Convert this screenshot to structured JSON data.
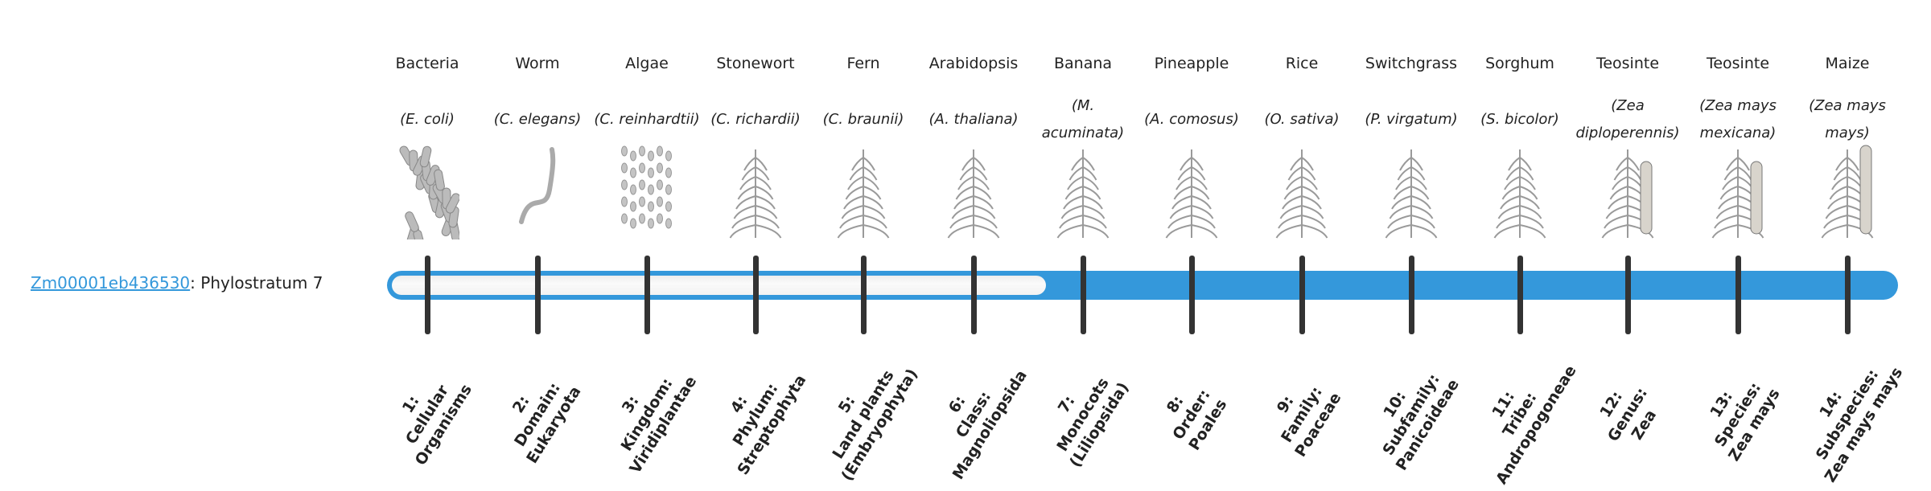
{
  "gene": {
    "id": "Zm00001eb436530",
    "suffix": ": Phylostratum 7",
    "phylostratum": 7
  },
  "colors": {
    "bar": "#3498db",
    "tick": "#333333",
    "link": "#3498db"
  },
  "strata": [
    {
      "name": "Bacteria",
      "sci": "(E. coli)",
      "icon": "bacteria-illustration",
      "label": [
        "1:",
        "Cellular",
        "Organisms"
      ]
    },
    {
      "name": "Worm",
      "sci": "(C. elegans)",
      "icon": "worm-illustration",
      "label": [
        "2:",
        "Domain:",
        "Eukaryota"
      ]
    },
    {
      "name": "Algae",
      "sci": "(C. reinhardtii)",
      "icon": "algae-illustration",
      "label": [
        "3:",
        "Kingdom:",
        "Viridiplantae"
      ]
    },
    {
      "name": "Stonewort",
      "sci": "(C. richardii)",
      "icon": "stonewort-illustration",
      "label": [
        "4:",
        "Phylum:",
        "Streptophyta"
      ]
    },
    {
      "name": "Fern",
      "sci": "(C. braunii)",
      "icon": "fern-illustration",
      "label": [
        "5:",
        "Land plants",
        "(Embryophyta)"
      ]
    },
    {
      "name": "Arabidopsis",
      "sci": "(A. thaliana)",
      "icon": "arabidopsis-illustration",
      "label": [
        "6:",
        "Class:",
        "Magnoliopsida"
      ]
    },
    {
      "name": "Banana",
      "sci": "(M. acuminata)",
      "icon": "banana-illustration",
      "label": [
        "7:",
        "Monocots",
        "(Liliopsida)"
      ]
    },
    {
      "name": "Pineapple",
      "sci": "(A. comosus)",
      "icon": "pineapple-illustration",
      "label": [
        "8:",
        "Order:",
        "Poales"
      ]
    },
    {
      "name": "Rice",
      "sci": "(O. sativa)",
      "icon": "rice-illustration",
      "label": [
        "9:",
        "Family:",
        "Poaceae"
      ]
    },
    {
      "name": "Switchgrass",
      "sci": "(P. virgatum)",
      "icon": "switchgrass-illustration",
      "label": [
        "10:",
        "Subfamily:",
        "Panicoideae"
      ]
    },
    {
      "name": "Sorghum",
      "sci": "(S. bicolor)",
      "icon": "sorghum-illustration",
      "label": [
        "11:",
        "Tribe:",
        "Andropogoneae"
      ]
    },
    {
      "name": "Teosinte",
      "sci": "(Zea diploperennis)",
      "icon": "teosinte-illustration",
      "label": [
        "12:",
        "Genus:",
        "Zea"
      ]
    },
    {
      "name": "Teosinte",
      "sci": "(Zea mays mexicana)",
      "icon": "teosinte-mexicana-illustration",
      "label": [
        "13:",
        "Species:",
        "Zea mays"
      ]
    },
    {
      "name": "Maize",
      "sci": "(Zea mays mays)",
      "icon": "maize-illustration",
      "label": [
        "14:",
        "Subspecies:",
        "Zea mays mays"
      ]
    }
  ]
}
